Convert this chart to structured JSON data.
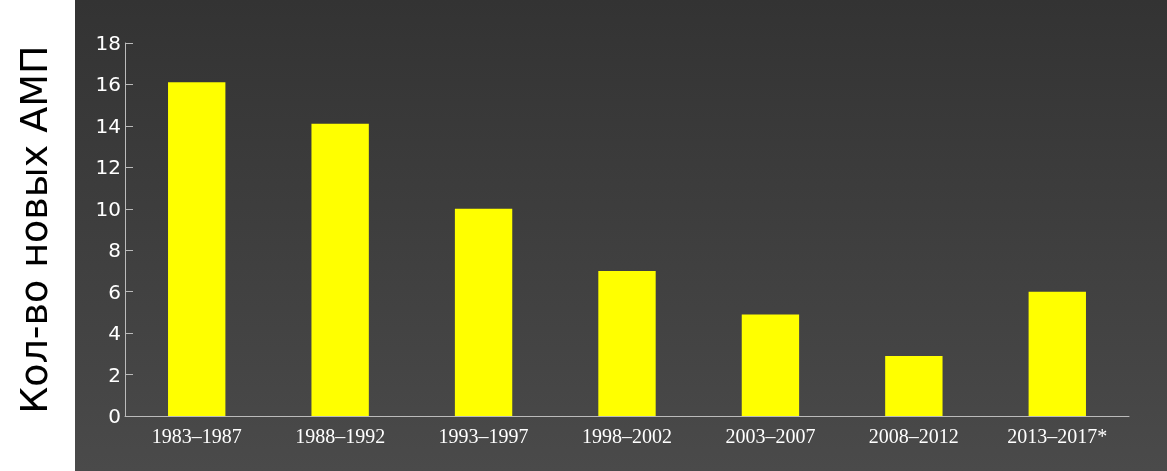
{
  "chart_data": {
    "type": "bar",
    "ylabel": "Кол-во новых АМП",
    "categories": [
      "1983–1987",
      "1988–1992",
      "1993–1997",
      "1998–2002",
      "2003–2007",
      "2008–2012",
      "2013–2017*"
    ],
    "values": [
      16.1,
      14.1,
      10,
      7,
      4.9,
      2.9,
      6
    ],
    "color": "#ffff00",
    "ylim": [
      0,
      18
    ],
    "yticks": [
      0,
      2,
      4,
      6,
      8,
      10,
      12,
      14,
      16,
      18
    ],
    "grid": false
  }
}
